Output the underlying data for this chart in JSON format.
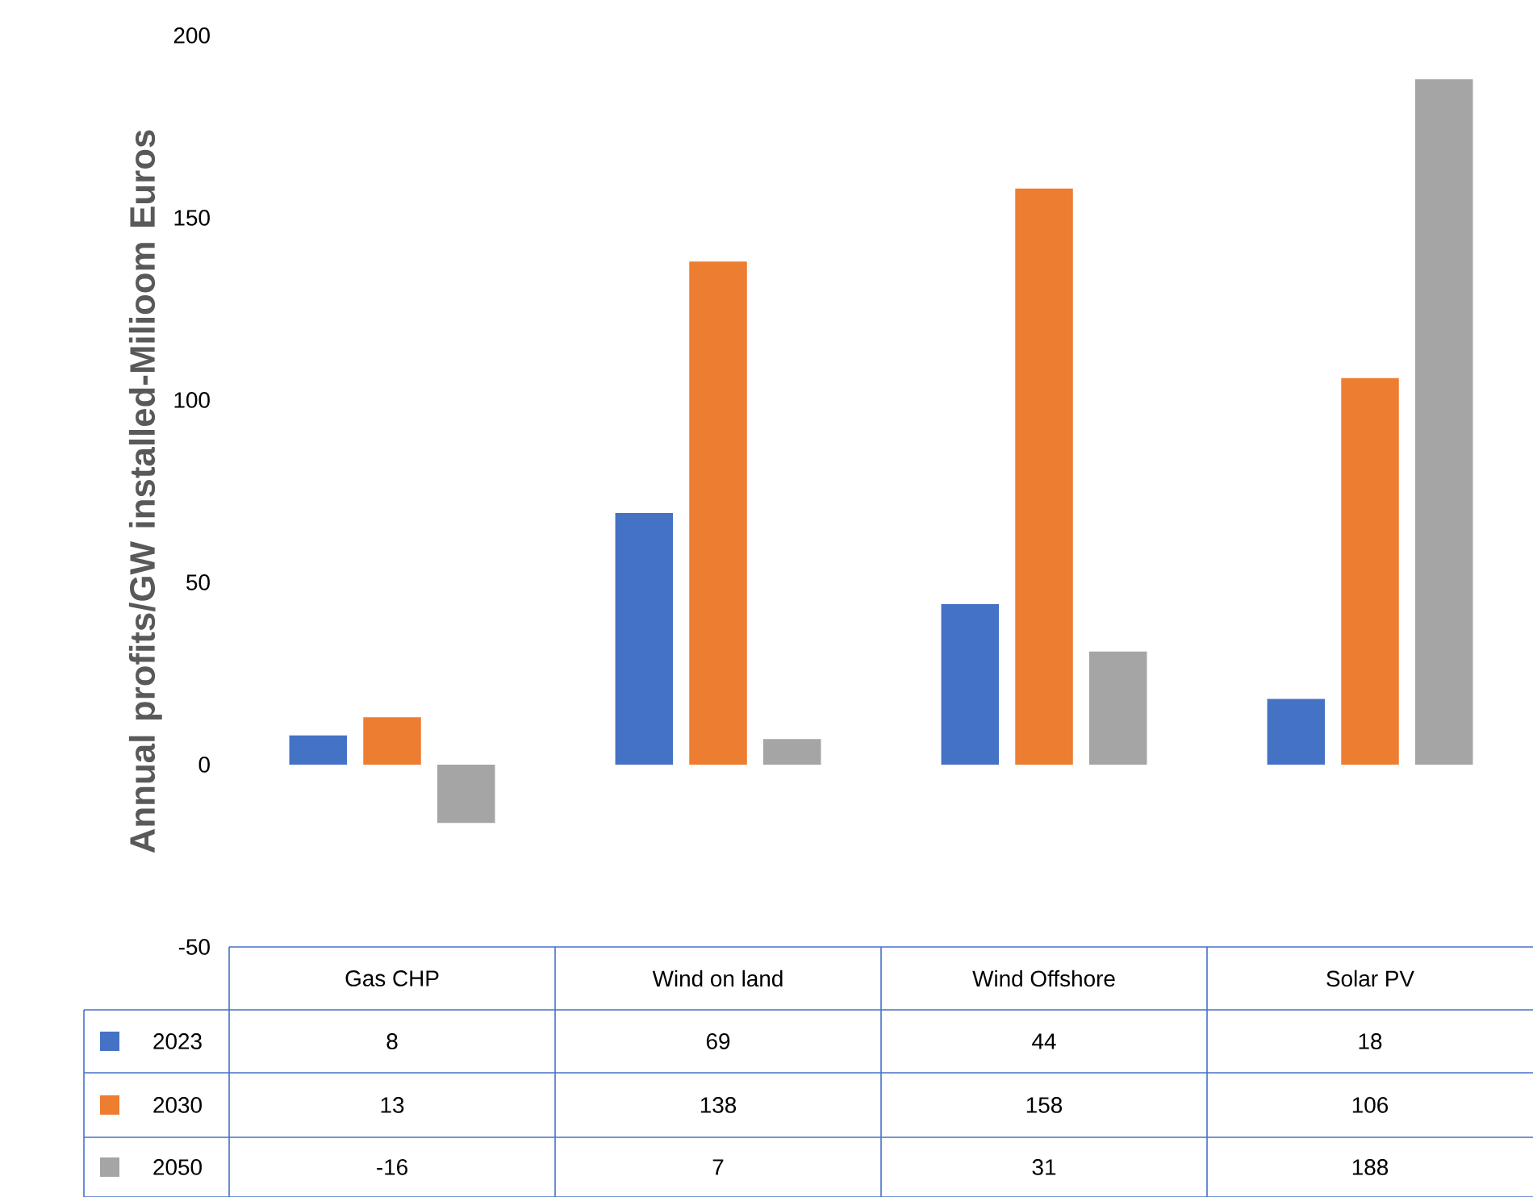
{
  "chart_data": {
    "type": "bar",
    "ylabel": "Annual profits/GW installed-Milioom Euros",
    "categories": [
      "Gas CHP",
      "Wind on land",
      "Wind Offshore",
      "Solar PV"
    ],
    "series": [
      {
        "name": "2023",
        "color": "#4472c4",
        "values": [
          8,
          69,
          44,
          18
        ]
      },
      {
        "name": "2030",
        "color": "#ed7d31",
        "values": [
          13,
          138,
          158,
          106
        ]
      },
      {
        "name": "2050",
        "color": "#a5a5a5",
        "values": [
          -16,
          7,
          31,
          188
        ]
      }
    ],
    "ylim": [
      -50,
      200
    ],
    "yticks": [
      -50,
      0,
      50,
      100,
      150,
      200
    ],
    "grid": false,
    "legend": "bottom",
    "data_labels": true
  }
}
